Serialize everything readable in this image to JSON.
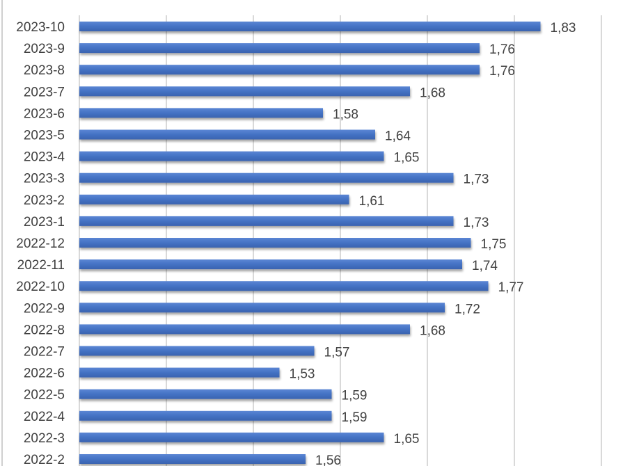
{
  "chart_data": {
    "type": "bar",
    "orientation": "horizontal",
    "title": "",
    "xlabel": "",
    "ylabel": "",
    "categories": [
      "2023-10",
      "2023-9",
      "2023-8",
      "2023-7",
      "2023-6",
      "2023-5",
      "2023-4",
      "2023-3",
      "2023-2",
      "2023-1",
      "2022-12",
      "2022-11",
      "2022-10",
      "2022-9",
      "2022-8",
      "2022-7",
      "2022-6",
      "2022-5",
      "2022-4",
      "2022-3",
      "2022-2"
    ],
    "values": [
      1.83,
      1.76,
      1.76,
      1.68,
      1.58,
      1.64,
      1.65,
      1.73,
      1.61,
      1.73,
      1.75,
      1.74,
      1.77,
      1.72,
      1.68,
      1.57,
      1.53,
      1.59,
      1.59,
      1.65,
      1.56
    ],
    "value_labels": [
      "1,83",
      "1,76",
      "1,76",
      "1,68",
      "1,58",
      "1,64",
      "1,65",
      "1,73",
      "1,61",
      "1,73",
      "1,75",
      "1,74",
      "1,77",
      "1,72",
      "1,68",
      "1,57",
      "1,53",
      "1,59",
      "1,59",
      "1,65",
      "1,56"
    ],
    "xlim": [
      1.3,
      1.9
    ],
    "grid_step": 0.1,
    "grid": true,
    "legend": "none",
    "bar_color": "#4472C4"
  }
}
